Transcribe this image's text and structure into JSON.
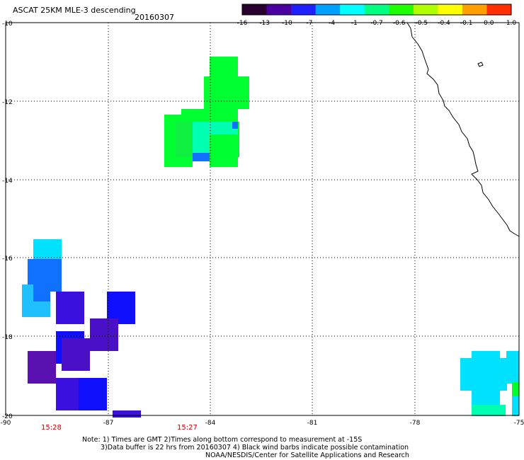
{
  "header": {
    "title": "ASCAT 25KM MLE-3 descending",
    "date": "20160307"
  },
  "colorbar": {
    "tick_labels": [
      "-16",
      "-13",
      "-10",
      "-7",
      "-4",
      "-1",
      "-0.7",
      "-0.6",
      "-0.5",
      "-0.4",
      "-0.1",
      "0.0",
      "1.0"
    ],
    "colors": [
      "#2a0030",
      "#4a00a0",
      "#2020ff",
      "#00a0ff",
      "#00ffff",
      "#00ff80",
      "#20ff00",
      "#b0ff00",
      "#ffff00",
      "#ffa000",
      "#ff3000"
    ]
  },
  "map": {
    "lon_labels": [
      "-90",
      "-87",
      "-84",
      "-81",
      "-78",
      "-75"
    ],
    "lat_labels": [
      "-10",
      "-12",
      "-14",
      "-16",
      "-18",
      "-20"
    ],
    "time_labels": [
      "15:28",
      "15:27"
    ],
    "time_color": "#cc0000"
  },
  "notes": {
    "line1": "Note: 1) Times are GMT 2)Times along bottom correspond to measurement at -15S",
    "line2": "3)Data buffer is 22 hrs from 20160307 4) Black wind barbs indicate possible contamination",
    "line3": "NOAA/NESDIS/Center for Satellite Applications and Research"
  },
  "swath_colors": {
    "green": "#00ff30",
    "lime": "#10f040",
    "aqua_green": "#00ffb0",
    "cyan": "#00e0ff",
    "sky": "#20c0ff",
    "blue_light": "#1070ff",
    "blue": "#1010ff",
    "indigo": "#3a10e0",
    "violet": "#4a10c8",
    "purple": "#5a10b0"
  }
}
